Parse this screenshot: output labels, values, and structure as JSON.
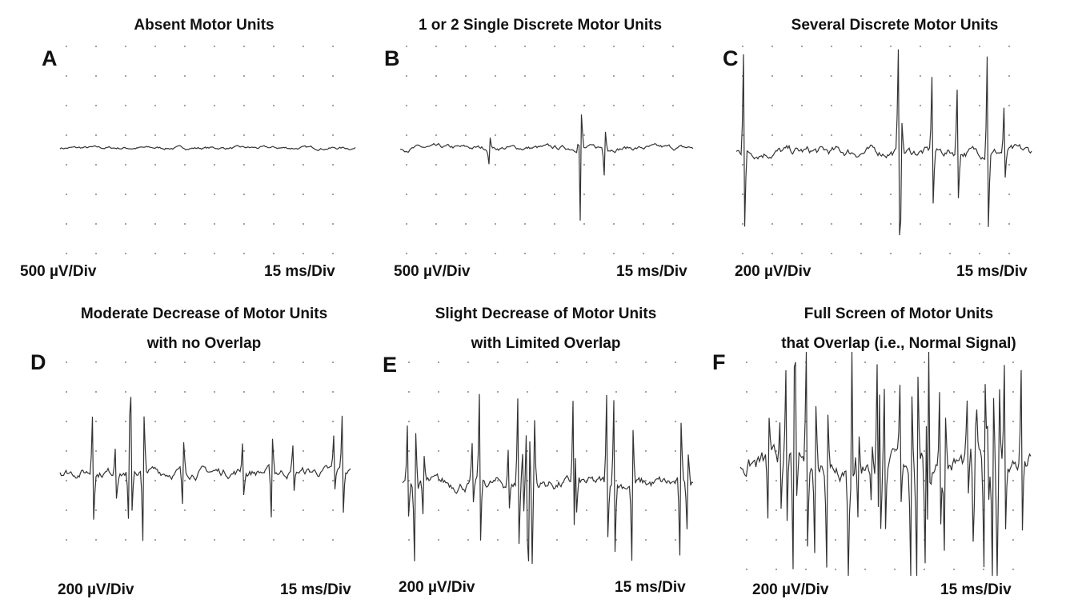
{
  "panels": [
    {
      "letter": "A",
      "title": [
        "Absent Motor Units"
      ],
      "y_scale": "500 µV/Div",
      "x_scale": "15 ms/Div"
    },
    {
      "letter": "B",
      "title": [
        "1 or 2 Single Discrete Motor Units"
      ],
      "y_scale": "500 µV/Div",
      "x_scale": "15 ms/Div"
    },
    {
      "letter": "C",
      "title": [
        "Several Discrete Motor Units"
      ],
      "y_scale": "200 µV/Div",
      "x_scale": "15 ms/Div"
    },
    {
      "letter": "D",
      "title": [
        "Moderate Decrease of Motor Units",
        "with no Overlap"
      ],
      "y_scale": "200 µV/Div",
      "x_scale": "15 ms/Div"
    },
    {
      "letter": "E",
      "title": [
        "Slight Decrease of Motor Units",
        "with Limited Overlap"
      ],
      "y_scale": "200 µV/Div",
      "x_scale": "15 ms/Div"
    },
    {
      "letter": "F",
      "title": [
        "Full Screen of Motor Units",
        "that Overlap (i.e., Normal Signal)"
      ],
      "y_scale": "200 µV/Div",
      "x_scale": "15 ms/Div"
    }
  ]
}
